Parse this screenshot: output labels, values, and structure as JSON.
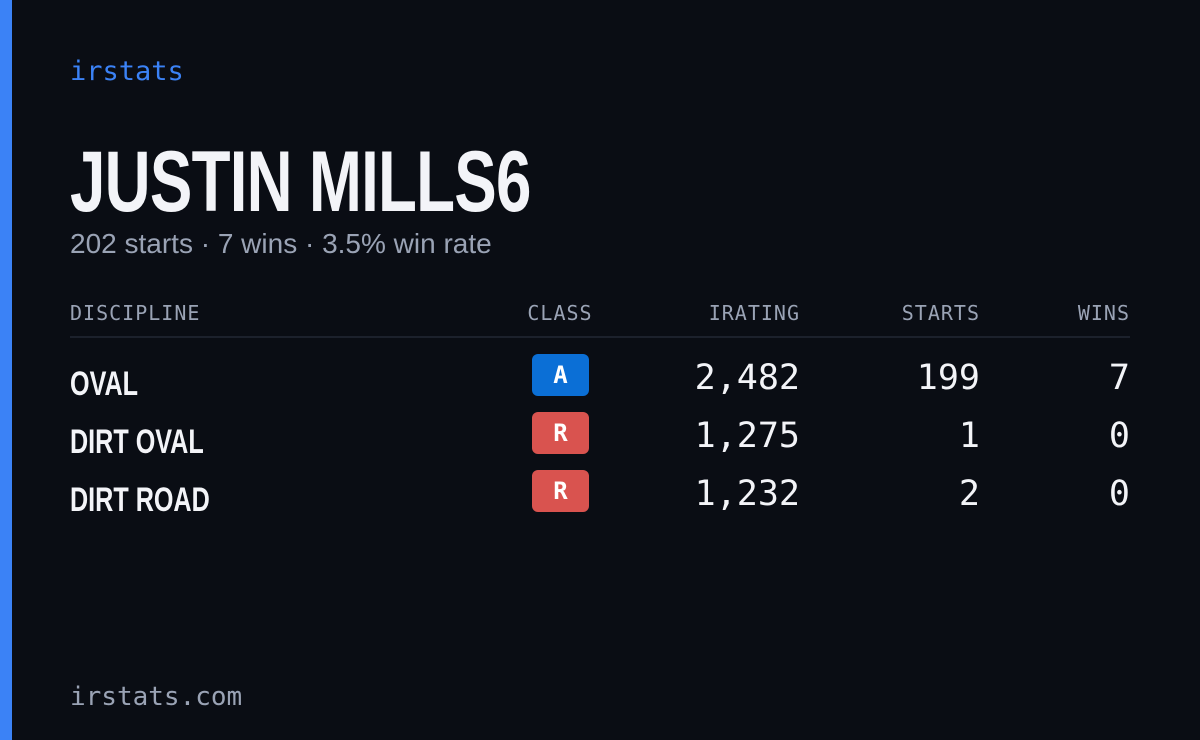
{
  "brand": "irstats",
  "title": "JUSTIN MILLS6",
  "subtitle": "202 starts · 7 wins · 3.5% win rate",
  "table": {
    "headers": [
      "DISCIPLINE",
      "CLASS",
      "IRATING",
      "STARTS",
      "WINS"
    ],
    "rows": [
      {
        "discipline": "OVAL",
        "class": "A",
        "class_color": "#0b6fd6",
        "irating": "2,482",
        "starts": "199",
        "wins": "7"
      },
      {
        "discipline": "DIRT OVAL",
        "class": "R",
        "class_color": "#d9534f",
        "irating": "1,275",
        "starts": "1",
        "wins": "0"
      },
      {
        "discipline": "DIRT ROAD",
        "class": "R",
        "class_color": "#d9534f",
        "irating": "1,232",
        "starts": "2",
        "wins": "0"
      }
    ]
  },
  "footer": "irstats.com"
}
